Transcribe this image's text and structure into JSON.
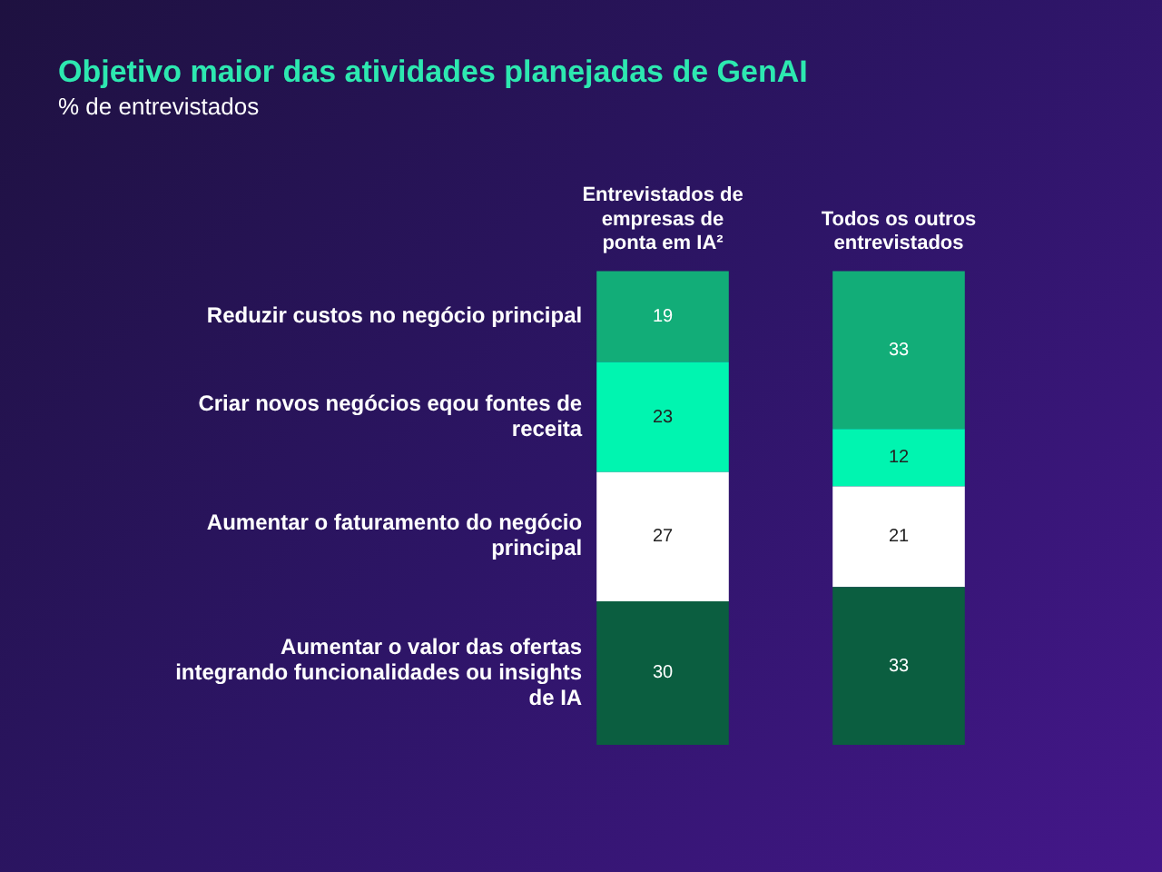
{
  "chart_data": {
    "type": "bar",
    "title": "Objetivo maior das atividades planejadas de GenAI",
    "subtitle": "% de entrevistados",
    "categories": [
      "Entrevistados de empresas de ponta em IA²",
      "Todos os outros entrevistados"
    ],
    "stacked": true,
    "data_labels": true,
    "legend": false,
    "grid": false,
    "tick_labels": "x",
    "series": [
      {
        "name": "Aumentar o valor das ofertas integrando funcionalidades ou insights de IA",
        "color": "#0b5e40",
        "values": [
          30,
          33
        ]
      },
      {
        "name": "Aumentar o faturamento do negócio principal",
        "color": "#ffffff",
        "values": [
          27,
          21
        ]
      },
      {
        "name": "Criar novos negócios eqou fontes de receita",
        "color": "#00f5b0",
        "values": [
          23,
          12
        ]
      },
      {
        "name": "Reduzir custos no negócio principal",
        "color": "#12ad78",
        "values": [
          19,
          33
        ]
      }
    ]
  }
}
